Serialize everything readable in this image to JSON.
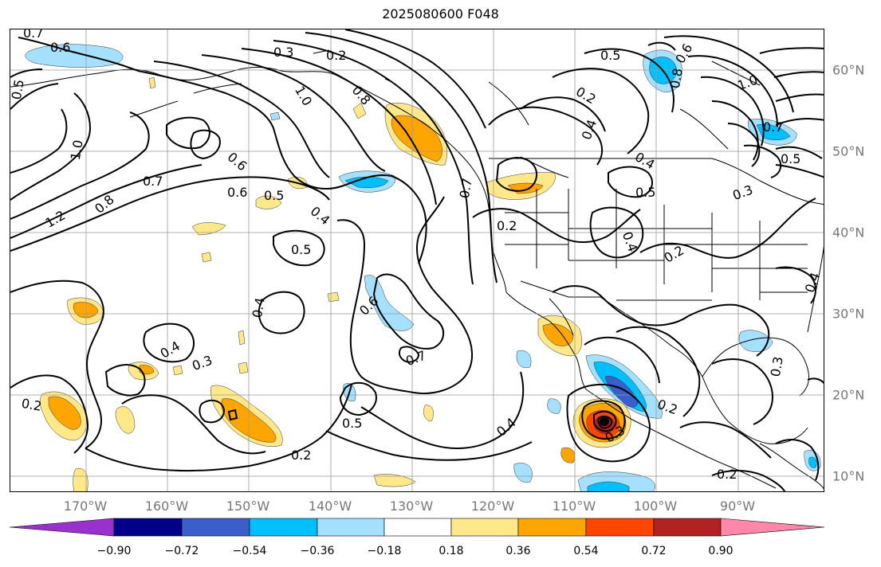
{
  "title": "2025080600 F048",
  "lon_labels": [
    "170°W",
    "160°W",
    "150°W",
    "140°W",
    "130°W",
    "120°W",
    "110°W",
    "100°W",
    "90°W"
  ],
  "lat_labels": [
    "60°N",
    "50°N",
    "40°N",
    "30°N",
    "20°N",
    "10°N"
  ],
  "colorbar": {
    "ticks": [
      "−0.90",
      "−0.72",
      "−0.54",
      "−0.36",
      "−0.18",
      "0.18",
      "0.36",
      "0.54",
      "0.72",
      "0.90"
    ],
    "colors": [
      "#9932cc",
      "#00008b",
      "#3a5fcd",
      "#00bfff",
      "#a6e0ff",
      "#ffffff",
      "#ffe88a",
      "#ffa500",
      "#ff4500",
      "#b22222",
      "#ff88aa"
    ]
  },
  "contour_labels": [
    {
      "text": "0.7",
      "id": "c1"
    },
    {
      "text": "0.6",
      "id": "c2"
    },
    {
      "text": "0.5",
      "id": "c3"
    },
    {
      "text": "0.3",
      "id": "c4"
    },
    {
      "text": "0.2",
      "id": "c5"
    },
    {
      "text": "1.0",
      "id": "c6"
    },
    {
      "text": "0.8",
      "id": "c7"
    },
    {
      "text": "0.7",
      "id": "c8"
    },
    {
      "text": "0.6",
      "id": "c9"
    },
    {
      "text": "0.5",
      "id": "c10"
    },
    {
      "text": "0.4",
      "id": "c11"
    },
    {
      "text": "0.5",
      "id": "c12"
    },
    {
      "text": "1.2",
      "id": "c13"
    },
    {
      "text": "0.8",
      "id": "c14"
    },
    {
      "text": "1.0",
      "id": "c15"
    },
    {
      "text": "0.6",
      "id": "c16"
    },
    {
      "text": "0.4",
      "id": "c17"
    },
    {
      "text": "0.3",
      "id": "c18"
    },
    {
      "text": "0.2",
      "id": "c19"
    },
    {
      "text": "0.4",
      "id": "c20"
    },
    {
      "text": "0.5",
      "id": "c21"
    },
    {
      "text": "0.2",
      "id": "c22"
    },
    {
      "text": "0.6",
      "id": "c23"
    },
    {
      "text": "0.7",
      "id": "c24"
    },
    {
      "text": "0.7",
      "id": "c25"
    },
    {
      "text": "0.2",
      "id": "c26"
    },
    {
      "text": "0.4",
      "id": "c27"
    },
    {
      "text": "0.2",
      "id": "c28"
    },
    {
      "text": "0.4",
      "id": "c29"
    },
    {
      "text": "0.5",
      "id": "c30"
    },
    {
      "text": "0.4",
      "id": "c31"
    },
    {
      "text": "0.2",
      "id": "c32"
    },
    {
      "text": "0.6",
      "id": "c33"
    },
    {
      "text": "0.8",
      "id": "c34"
    },
    {
      "text": "1.0",
      "id": "c35"
    },
    {
      "text": "0.7",
      "id": "c36"
    },
    {
      "text": "0.5",
      "id": "c37"
    },
    {
      "text": "0.3",
      "id": "c38"
    },
    {
      "text": "0.4",
      "id": "c39"
    },
    {
      "text": "0.3",
      "id": "c40"
    },
    {
      "text": "0.2",
      "id": "c41"
    },
    {
      "text": "0.3",
      "id": "c42"
    },
    {
      "text": "0.2",
      "id": "c43"
    },
    {
      "text": "0.4",
      "id": "c44"
    },
    {
      "text": "0.5",
      "id": "c45"
    }
  ]
}
